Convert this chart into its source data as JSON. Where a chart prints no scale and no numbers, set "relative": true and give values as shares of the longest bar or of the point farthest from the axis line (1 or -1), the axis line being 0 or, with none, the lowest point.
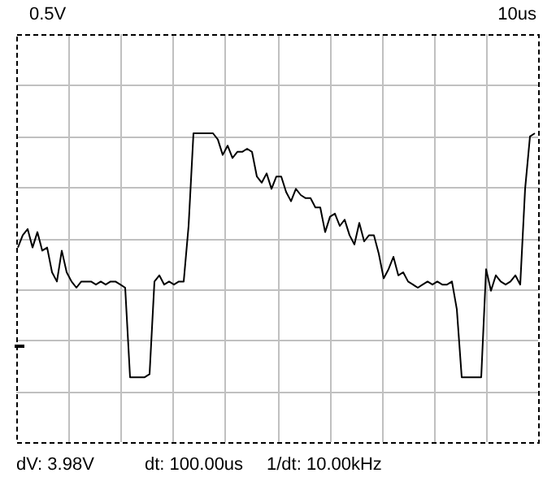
{
  "chart_data": {
    "type": "line",
    "relative": true,
    "grid": true,
    "legend": false,
    "marker": "none",
    "line_style": "solid",
    "annotations": [
      "0.5V",
      "10us",
      "dV: 3.98V",
      "dt: 100.00us",
      "1/dt: 10.00kHz"
    ],
    "categories": [
      null,
      null,
      null,
      null,
      null,
      null,
      null,
      null,
      null,
      null,
      null,
      null,
      null,
      null,
      null,
      null,
      null,
      null,
      null,
      null,
      null,
      null,
      null,
      null,
      null,
      null,
      null,
      null,
      null,
      null,
      null,
      null,
      null,
      null,
      null,
      null,
      null,
      null,
      null,
      null,
      null,
      null,
      null,
      null,
      null,
      null,
      null,
      null,
      null,
      null,
      null,
      null,
      null,
      null,
      null,
      null,
      null,
      null,
      null,
      null,
      null,
      null,
      null,
      null,
      null,
      null,
      null,
      null,
      null,
      null,
      null,
      null,
      null,
      null,
      null,
      null,
      null,
      null,
      null,
      null,
      null,
      null,
      null,
      null,
      null,
      null,
      null,
      null,
      null,
      null,
      null,
      null,
      null,
      null,
      null,
      null,
      null,
      null,
      null,
      null,
      null,
      null,
      null,
      null,
      null,
      null,
      null
    ],
    "series": [
      {
        "color": "#000000",
        "values": [
          0.63,
          0.67,
          0.69,
          0.63,
          0.68,
          0.62,
          0.63,
          0.55,
          0.52,
          0.62,
          0.55,
          0.52,
          0.5,
          0.52,
          0.52,
          0.52,
          0.51,
          0.52,
          0.51,
          0.52,
          0.52,
          0.51,
          0.5,
          0.21,
          0.21,
          0.21,
          0.21,
          0.22,
          0.52,
          0.54,
          0.51,
          0.52,
          0.51,
          0.52,
          0.52,
          0.7,
          1,
          1,
          1,
          1,
          1,
          0.98,
          0.93,
          0.96,
          0.92,
          0.94,
          0.94,
          0.95,
          0.94,
          0.86,
          0.84,
          0.87,
          0.82,
          0.86,
          0.86,
          0.81,
          0.78,
          0.82,
          0.8,
          0.79,
          0.79,
          0.76,
          0.76,
          0.68,
          0.73,
          0.74,
          0.7,
          0.72,
          0.67,
          0.64,
          0.71,
          0.65,
          0.67,
          0.67,
          0.61,
          0.53,
          0.56,
          0.6,
          0.54,
          0.55,
          0.52,
          0.51,
          0.5,
          0.51,
          0.52,
          0.51,
          0.52,
          0.51,
          0.51,
          0.52,
          0.43,
          0.21,
          0.21,
          0.21,
          0.21,
          0.21,
          0.56,
          0.49,
          0.54,
          0.52,
          0.51,
          0.52,
          0.54,
          0.51,
          0.82,
          0.99,
          1
        ]
      }
    ]
  }
}
